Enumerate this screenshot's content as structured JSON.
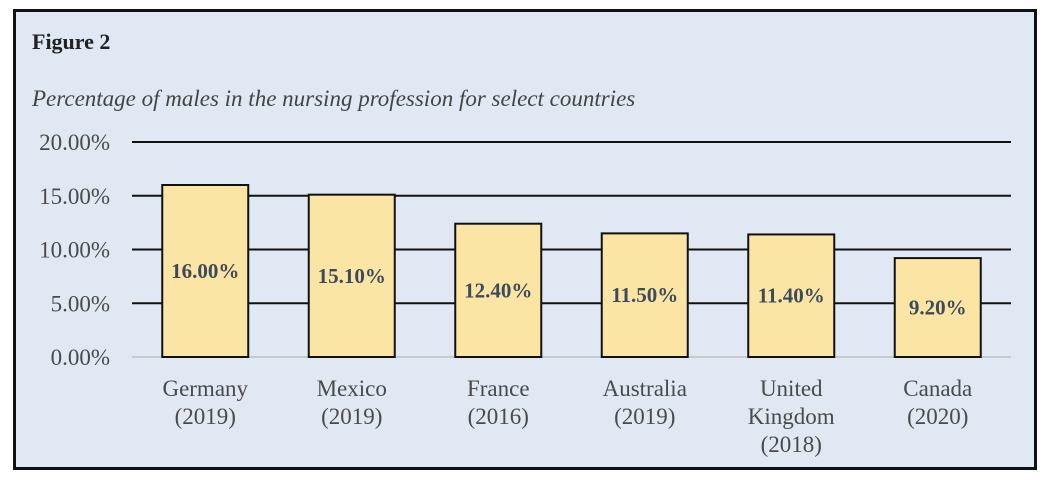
{
  "figure": {
    "label": "Figure 2",
    "title": "Percentage of males in the nursing profession for select countries"
  },
  "colors": {
    "background": "#dfe8f3",
    "bar_fill": "#fbe5a4",
    "bar_stroke": "#111111",
    "grid": "#111111"
  },
  "chart_data": {
    "type": "bar",
    "title": "Percentage of males in the nursing profession for select countries",
    "categories": [
      [
        "Germany",
        "(2019)"
      ],
      [
        "Mexico",
        "(2019)"
      ],
      [
        "France",
        "(2016)"
      ],
      [
        "Australia",
        "(2019)"
      ],
      [
        "United",
        "Kingdom",
        "(2018)"
      ],
      [
        "Canada",
        "(2020)"
      ]
    ],
    "values": [
      16.0,
      15.1,
      12.4,
      11.5,
      11.4,
      9.2
    ],
    "data_labels": [
      "16.00%",
      "15.10%",
      "12.40%",
      "11.50%",
      "11.40%",
      "9.20%"
    ],
    "yticks": [
      0,
      5,
      10,
      15,
      20
    ],
    "ytick_labels": [
      "0.00%",
      "5.00%",
      "10.00%",
      "15.00%",
      "20.00%"
    ],
    "ylim": [
      0,
      20
    ],
    "xlabel": "",
    "ylabel": "",
    "grid": true,
    "legend": "none"
  }
}
